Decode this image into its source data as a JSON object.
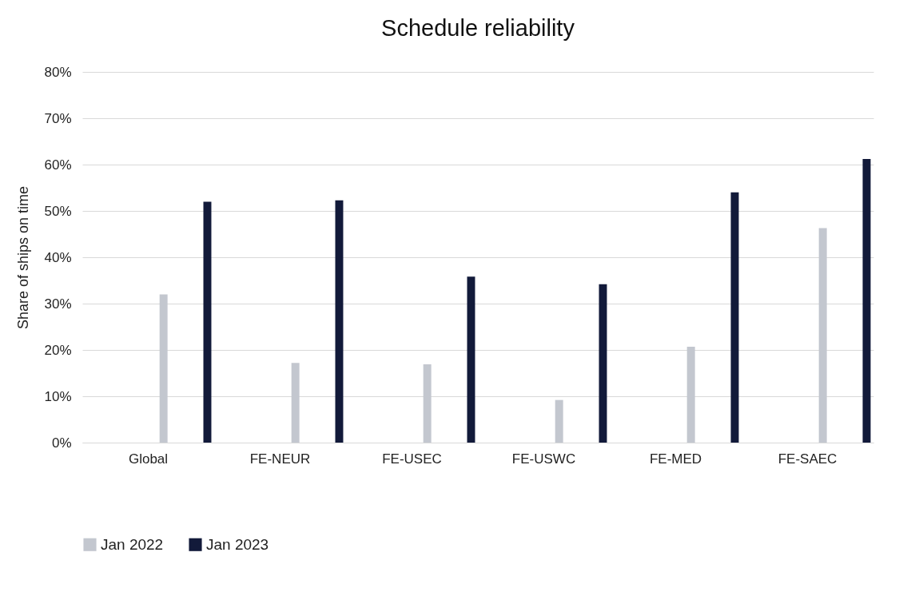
{
  "chart_data": {
    "type": "bar",
    "title": "Schedule reliability",
    "ylabel": "Share of ships on time",
    "categories": [
      "Global",
      "FE-NEUR",
      "FE-USEC",
      "FE-USWC",
      "FE-MED",
      "FE-SAEC"
    ],
    "series": [
      {
        "name": "Jan 2022",
        "color": "#c3c7cf",
        "values": [
          32,
          17.2,
          16.9,
          9.2,
          20.7,
          46.3
        ]
      },
      {
        "name": "Jan 2023",
        "color": "#121a3a",
        "values": [
          52,
          52.3,
          35.8,
          34.2,
          54,
          61.2
        ]
      }
    ],
    "ylim": [
      0,
      80
    ],
    "yticks": [
      {
        "value": 0,
        "label": "0%"
      },
      {
        "value": 10,
        "label": "10%"
      },
      {
        "value": 20,
        "label": "20%"
      },
      {
        "value": 30,
        "label": "30%"
      },
      {
        "value": 40,
        "label": "40%"
      },
      {
        "value": 50,
        "label": "50%"
      },
      {
        "value": 60,
        "label": "60%"
      },
      {
        "value": 70,
        "label": "70%"
      },
      {
        "value": 80,
        "label": "80%"
      }
    ],
    "grid": "y",
    "legend": "bottom"
  }
}
